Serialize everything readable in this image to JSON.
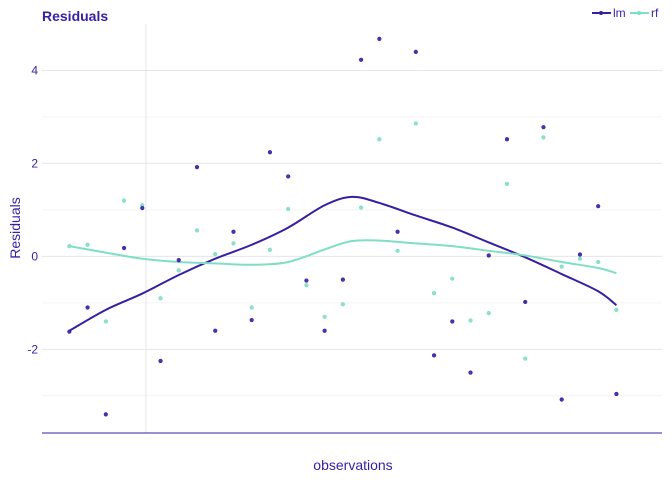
{
  "colors": {
    "lm": "#371ea3",
    "rf": "#7fdec4",
    "grid": "#e6e6e6",
    "axis_text": "#371ea3",
    "axis_line": "#371ea3"
  },
  "chart_data": {
    "type": "scatter",
    "title": "Residuals",
    "xlabel": "observations",
    "ylabel": "Residuals",
    "xlim": [
      0,
      34
    ],
    "ylim": [
      -3.8,
      5.0
    ],
    "yticks": [
      -2,
      0,
      2,
      4
    ],
    "ytick_labels": [
      "-2",
      "0",
      "2",
      "4"
    ],
    "xgrid": [
      5.7
    ],
    "grid": true,
    "legend_position": "top-right",
    "series": [
      {
        "name": "lm",
        "color_key": "lm",
        "points": [
          [
            1.5,
            -1.62
          ],
          [
            2.5,
            -1.1
          ],
          [
            3.5,
            -3.4
          ],
          [
            4.5,
            0.18
          ],
          [
            5.5,
            1.04
          ],
          [
            6.5,
            -2.25
          ],
          [
            7.5,
            -0.08
          ],
          [
            8.5,
            1.92
          ],
          [
            9.5,
            -1.6
          ],
          [
            10.5,
            0.53
          ],
          [
            11.5,
            -1.37
          ],
          [
            12.5,
            2.24
          ],
          [
            13.5,
            1.72
          ],
          [
            14.5,
            -0.52
          ],
          [
            15.5,
            -1.6
          ],
          [
            16.5,
            -0.5
          ],
          [
            17.5,
            4.23
          ],
          [
            18.5,
            4.68
          ],
          [
            19.5,
            0.53
          ],
          [
            20.5,
            4.4
          ],
          [
            21.5,
            -2.13
          ],
          [
            22.5,
            -1.4
          ],
          [
            23.5,
            -2.5
          ],
          [
            24.5,
            0.02
          ],
          [
            25.5,
            2.52
          ],
          [
            26.5,
            -0.98
          ],
          [
            27.5,
            2.78
          ],
          [
            28.5,
            -3.08
          ],
          [
            29.5,
            0.04
          ],
          [
            30.5,
            1.08
          ],
          [
            31.5,
            -2.96
          ]
        ],
        "smooth": [
          [
            1.5,
            -1.6
          ],
          [
            3.5,
            -1.15
          ],
          [
            5.5,
            -0.8
          ],
          [
            7.5,
            -0.4
          ],
          [
            9.5,
            -0.05
          ],
          [
            11.5,
            0.25
          ],
          [
            13.5,
            0.62
          ],
          [
            15.5,
            1.1
          ],
          [
            17,
            1.28
          ],
          [
            18.5,
            1.15
          ],
          [
            20.5,
            0.88
          ],
          [
            22.5,
            0.62
          ],
          [
            24.5,
            0.3
          ],
          [
            26.5,
            -0.02
          ],
          [
            28.5,
            -0.38
          ],
          [
            30.5,
            -0.75
          ],
          [
            31.5,
            -1.05
          ]
        ]
      },
      {
        "name": "rf",
        "color_key": "rf",
        "points": [
          [
            1.5,
            0.22
          ],
          [
            2.5,
            0.25
          ],
          [
            3.5,
            -1.4
          ],
          [
            4.5,
            1.2
          ],
          [
            5.5,
            1.1
          ],
          [
            6.5,
            -0.9
          ],
          [
            7.5,
            -0.3
          ],
          [
            8.5,
            0.56
          ],
          [
            9.5,
            0.05
          ],
          [
            10.5,
            0.28
          ],
          [
            11.5,
            -1.1
          ],
          [
            12.5,
            0.14
          ],
          [
            13.5,
            1.02
          ],
          [
            14.5,
            -0.62
          ],
          [
            15.5,
            -1.3
          ],
          [
            16.5,
            -1.03
          ],
          [
            17.5,
            1.05
          ],
          [
            18.5,
            2.52
          ],
          [
            19.5,
            0.12
          ],
          [
            20.5,
            2.86
          ],
          [
            21.5,
            -0.79
          ],
          [
            22.5,
            -0.48
          ],
          [
            23.5,
            -1.38
          ],
          [
            24.5,
            -1.22
          ],
          [
            25.5,
            1.56
          ],
          [
            26.5,
            -2.2
          ],
          [
            27.5,
            2.56
          ],
          [
            28.5,
            -0.22
          ],
          [
            29.5,
            -0.05
          ],
          [
            30.5,
            -0.12
          ],
          [
            31.5,
            -1.15
          ]
        ],
        "smooth": [
          [
            1.5,
            0.22
          ],
          [
            3.5,
            0.08
          ],
          [
            5.5,
            -0.05
          ],
          [
            7.5,
            -0.12
          ],
          [
            9.5,
            -0.15
          ],
          [
            11.5,
            -0.18
          ],
          [
            13.5,
            -0.12
          ],
          [
            15.5,
            0.15
          ],
          [
            17,
            0.33
          ],
          [
            18.5,
            0.34
          ],
          [
            20.5,
            0.28
          ],
          [
            22.5,
            0.22
          ],
          [
            24.5,
            0.12
          ],
          [
            26.5,
            0.02
          ],
          [
            28.5,
            -0.12
          ],
          [
            30.5,
            -0.25
          ],
          [
            31.5,
            -0.36
          ]
        ]
      }
    ]
  }
}
